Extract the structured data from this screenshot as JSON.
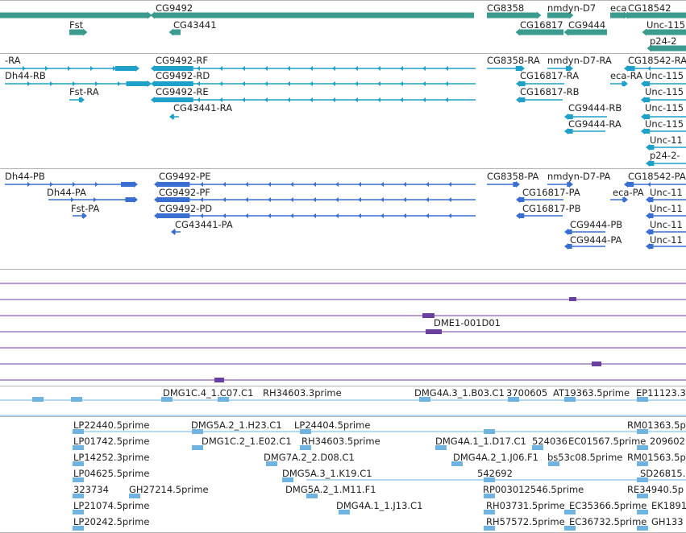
{
  "colors": {
    "gene": "#3a9b8e",
    "transcript_rna": "#1ea0c8",
    "transcript_protein": "#3a6fd2",
    "alignment": "#6a3fa0",
    "est": "#6fb4e0",
    "separator": "#b4b4b4",
    "label_text": "#222222"
  },
  "icons": {
    "strand_forward": "arrow-right-glyph",
    "strand_reverse": "arrow-left-glyph"
  },
  "tracks": {
    "genes": {
      "labels": [
        "CG9492",
        "CG8358",
        "nmdyn-D7",
        "eca",
        "CG18542",
        "Fst",
        "CG43441",
        "CG16817",
        "CG9444",
        "Unc-115",
        "p24-2"
      ]
    },
    "transcripts_rna": {
      "labels": [
        "-RA",
        "CG9492-RF",
        "CG8358-RA",
        "nmdyn-D7-RA",
        "CG18542-RA",
        "Dh44-RB",
        "CG9492-RD",
        "CG16817-RA",
        "eca-RA",
        "Unc-115",
        "Fst-RA",
        "CG9492-RE",
        "CG16817-RB",
        "Unc-115",
        "CG43441-RA",
        "CG9444-RB",
        "Unc-115",
        "CG9444-RA",
        "Unc-115",
        "Unc-11",
        "p24-2-"
      ]
    },
    "transcripts_protein": {
      "labels": [
        "Dh44-PB",
        "CG9492-PE",
        "CG8358-PA",
        "nmdyn-D7-PA",
        "CG18542-PA",
        "Dh44-PA",
        "CG9492-PF",
        "CG16817-PA",
        "eca-PA",
        "Unc-11",
        "Fst-PA",
        "CG9492-PD",
        "CG16817-PB",
        "Unc-11",
        "CG43441-PA",
        "CG9444-PB",
        "Unc-11",
        "CG9444-PA",
        "Unc-11"
      ]
    },
    "alignments": {
      "labels": [
        "DME1-001D01"
      ]
    },
    "ests": {
      "labels": [
        "DMG1C.4_1.C07.C1",
        "RH34603.3prime",
        "DMG4A.3_1.B03.C1",
        "3700605",
        "AT19363.5prime",
        "EP11123.3",
        "LP22440.5prime",
        "DMG5A.2_1.H23.C1",
        "LP24404.5prime",
        "RM01363.5p",
        "LP01742.5prime",
        "DMG1C.2_1.E02.C1",
        "RH34603.5prime",
        "DMG4A.1_1.D17.C1",
        "524036",
        "EC01567.5prime",
        "209602",
        "LP14252.3prime",
        "DMG7A.2_2.D08.C1",
        "DMG4A.2_1.J06.F1",
        "bs53c08.5prime",
        "RM01563.5p",
        "LP04625.5prime",
        "DMG5A.3_1.K19.C1",
        "542692",
        "SD26815.5prime",
        "323734",
        "GH27214.5prime",
        "DMG5A.2_1.M11.F1",
        "RP003012546.5prime",
        "RE34940.5p",
        "LP21074.5prime",
        "DMG4A.1_1.J13.C1",
        "RH03731.5prime",
        "EC35366.5prime",
        "EK1891",
        "LP20242.5prime",
        "RH57572.5prime",
        "EC36732.5prime",
        "GH133"
      ]
    }
  }
}
